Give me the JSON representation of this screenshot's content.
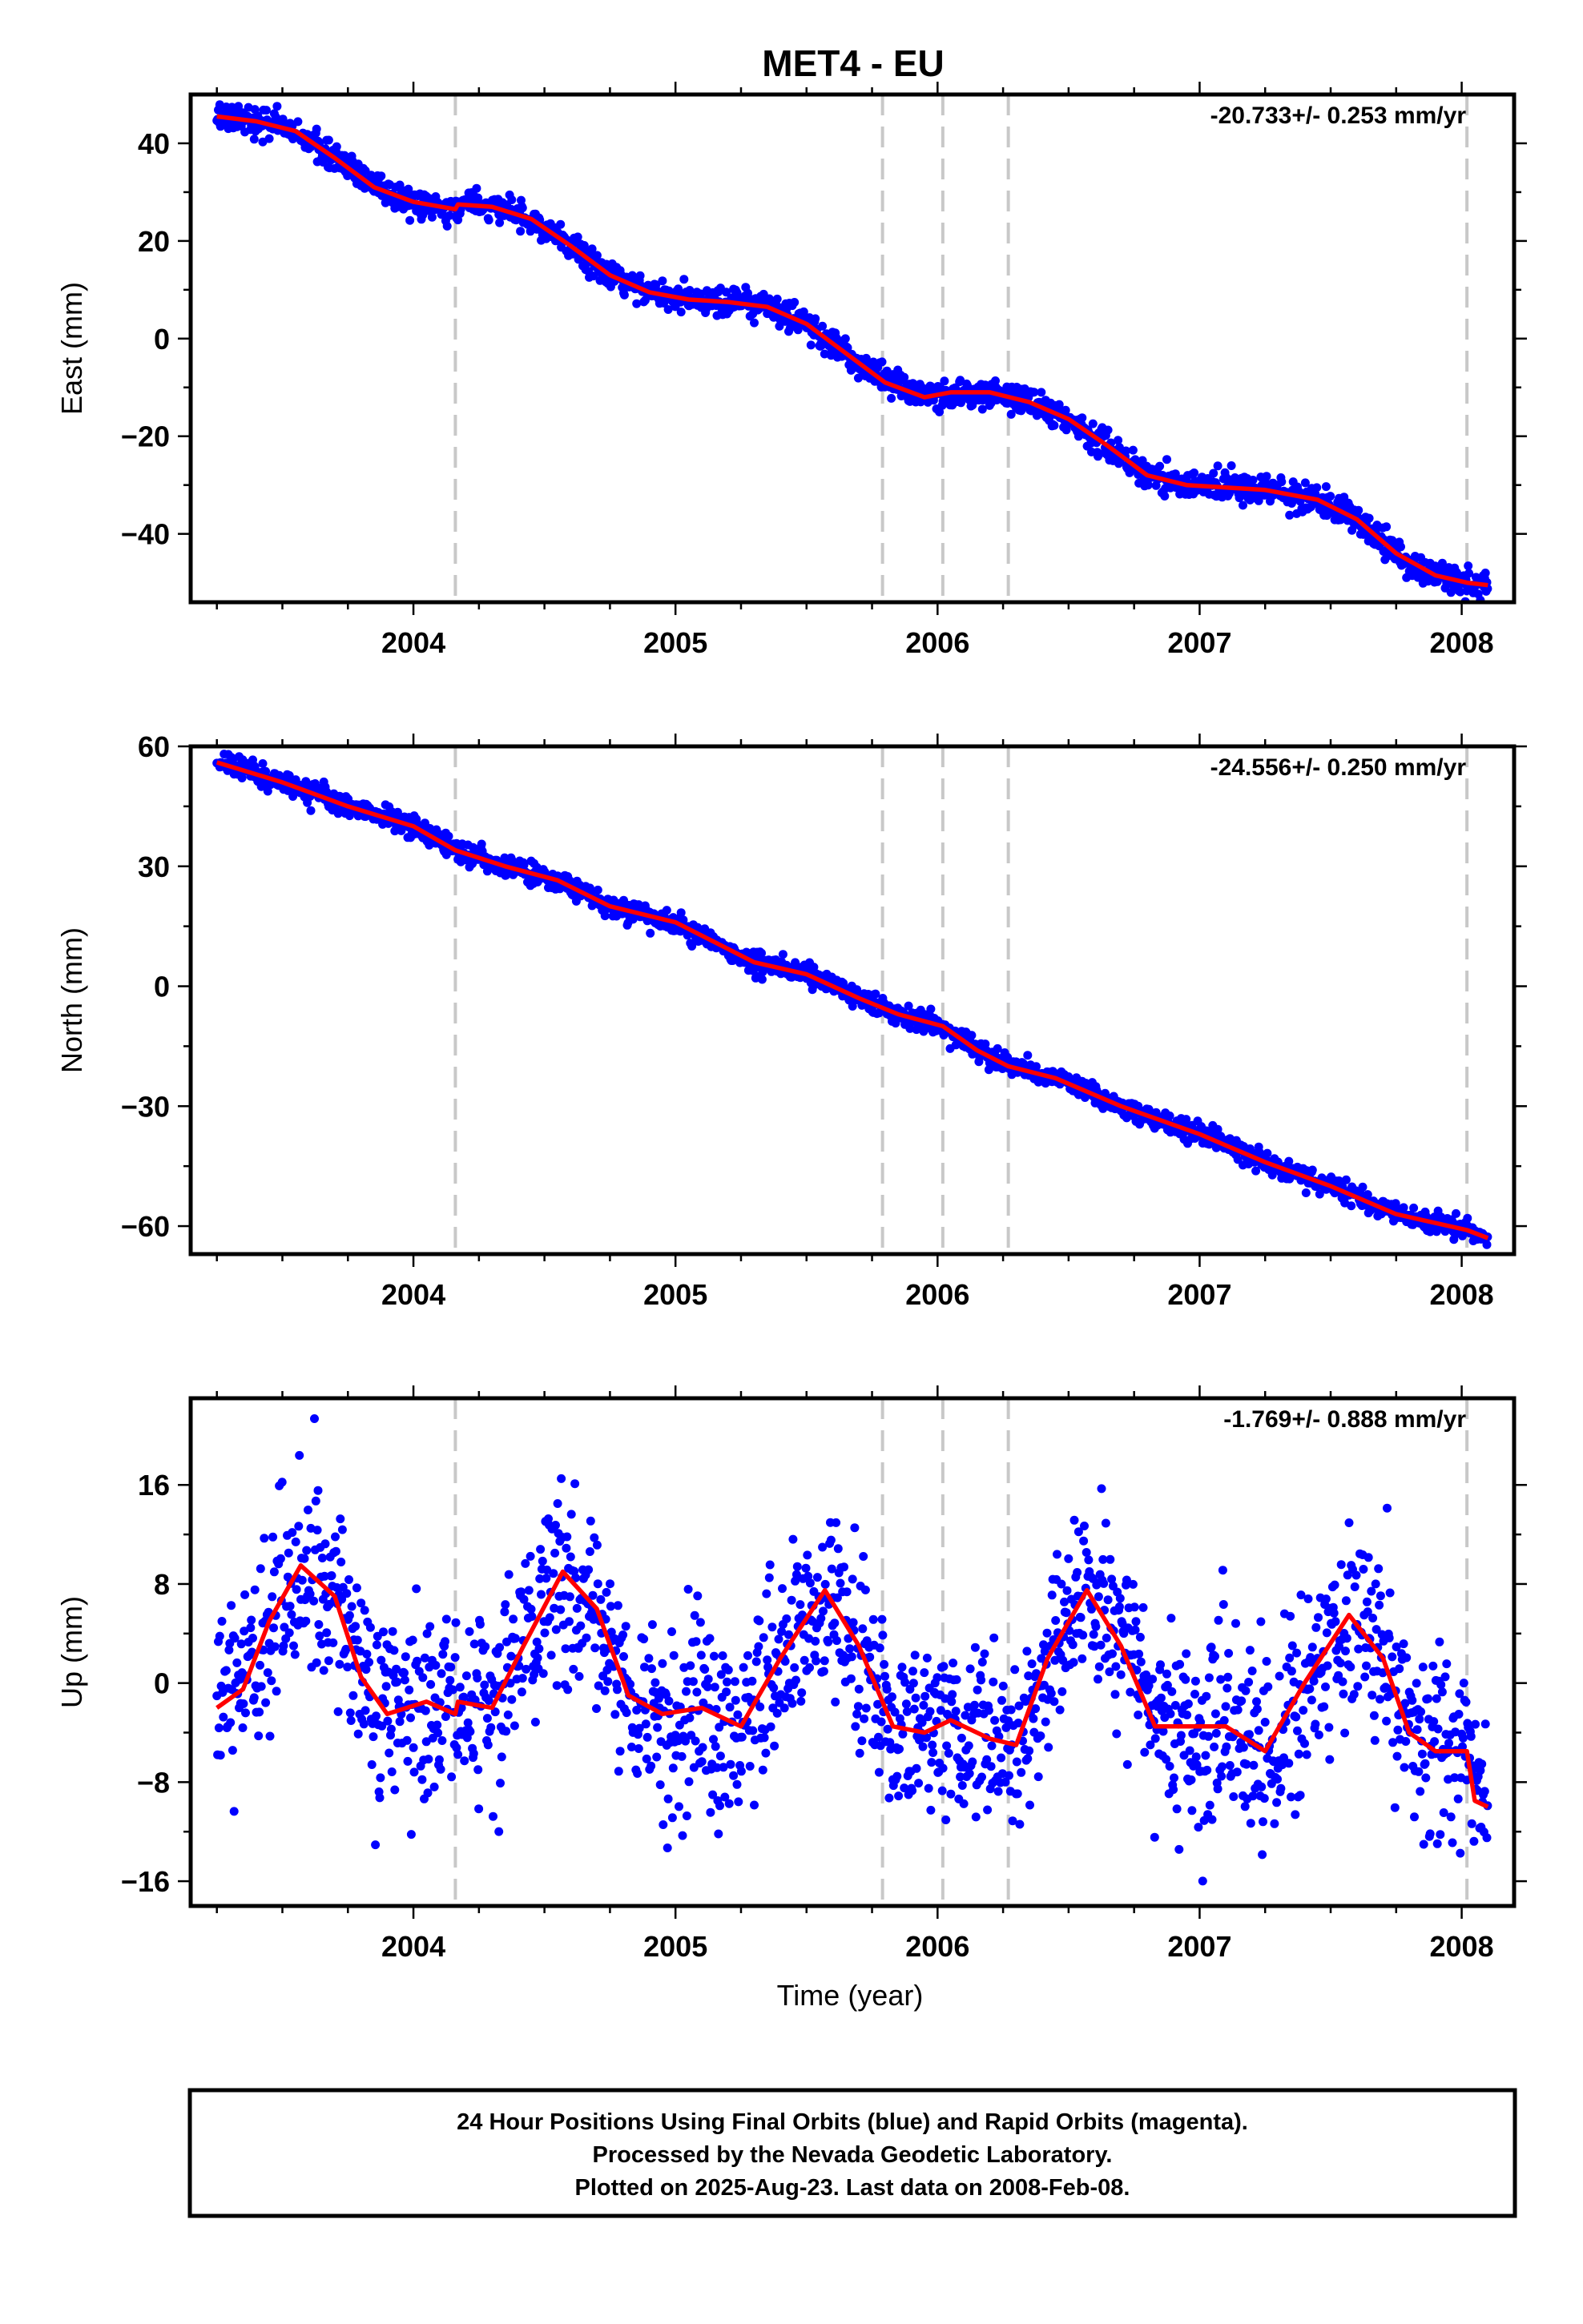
{
  "title": "MET4 - EU",
  "xlabel": "Time (year)",
  "footer": {
    "line1": "24 Hour Positions Using Final Orbits (blue) and Rapid Orbits (magenta).",
    "line2": "Processed by the Nevada Geodetic Laboratory.",
    "line3": "Plotted on 2025-Aug-23. Last data on 2008-Feb-08."
  },
  "colors": {
    "points": "#0000ff",
    "fit": "#ff0000",
    "breaks": "#c8c8c8"
  },
  "chart_data": [
    {
      "type": "scatter",
      "component": "east",
      "ylabel": "East (mm)",
      "rate_label": "-20.733+/- 0.253 mm/yr",
      "xlim": [
        2003.15,
        2008.2
      ],
      "ylim": [
        -54,
        50
      ],
      "yticks": [
        -40,
        -20,
        0,
        20,
        40
      ],
      "ytick_labels": [
        "−40",
        "−20",
        "0",
        "20",
        "40"
      ],
      "xticks": [
        2004,
        2005,
        2006,
        2007,
        2008
      ],
      "xtick_labels": [
        "2004",
        "2005",
        "2006",
        "2007",
        "2008"
      ],
      "breaks": [
        2004.16,
        2005.79,
        2006.02,
        2006.27,
        2008.02
      ],
      "noise_sd": 1.4,
      "fit": [
        [
          2003.25,
          45.5
        ],
        [
          2003.4,
          44.5
        ],
        [
          2003.55,
          42.5
        ],
        [
          2003.7,
          37.0
        ],
        [
          2003.85,
          31.0
        ],
        [
          2004.0,
          28.0
        ],
        [
          2004.16,
          26.5
        ],
        [
          2004.17,
          27.5
        ],
        [
          2004.3,
          27.0
        ],
        [
          2004.45,
          24.5
        ],
        [
          2004.6,
          19.0
        ],
        [
          2004.75,
          13.0
        ],
        [
          2004.9,
          9.5
        ],
        [
          2005.05,
          8.0
        ],
        [
          2005.2,
          7.5
        ],
        [
          2005.35,
          6.5
        ],
        [
          2005.5,
          3.0
        ],
        [
          2005.65,
          -3.0
        ],
        [
          2005.8,
          -9.0
        ],
        [
          2005.95,
          -12.0
        ],
        [
          2006.05,
          -11.0
        ],
        [
          2006.2,
          -11.0
        ],
        [
          2006.35,
          -13.0
        ],
        [
          2006.5,
          -16.5
        ],
        [
          2006.65,
          -22.0
        ],
        [
          2006.8,
          -28.0
        ],
        [
          2006.95,
          -30.0
        ],
        [
          2007.1,
          -30.5
        ],
        [
          2007.25,
          -31.0
        ],
        [
          2007.45,
          -33.0
        ],
        [
          2007.6,
          -37.0
        ],
        [
          2007.75,
          -44.0
        ],
        [
          2007.9,
          -48.5
        ],
        [
          2008.02,
          -50.0
        ],
        [
          2008.1,
          -50.5
        ]
      ]
    },
    {
      "type": "scatter",
      "component": "north",
      "ylabel": "North (mm)",
      "rate_label": "-24.556+/- 0.250 mm/yr",
      "xlim": [
        2003.15,
        2008.2
      ],
      "ylim": [
        -67,
        60
      ],
      "yticks": [
        -60,
        -30,
        0,
        30,
        60
      ],
      "ytick_labels": [
        "−60",
        "−30",
        "0",
        "30",
        "60"
      ],
      "xticks": [
        2004,
        2005,
        2006,
        2007,
        2008
      ],
      "xtick_labels": [
        "2004",
        "2005",
        "2006",
        "2007",
        "2008"
      ],
      "breaks": [
        2004.16,
        2005.79,
        2006.02,
        2006.27,
        2008.02
      ],
      "noise_sd": 1.3,
      "fit": [
        [
          2003.25,
          56.0
        ],
        [
          2003.5,
          51.0
        ],
        [
          2003.75,
          45.0
        ],
        [
          2004.0,
          40.0
        ],
        [
          2004.16,
          34.0
        ],
        [
          2004.35,
          30.0
        ],
        [
          2004.55,
          26.5
        ],
        [
          2004.75,
          20.0
        ],
        [
          2005.0,
          16.0
        ],
        [
          2005.15,
          11.0
        ],
        [
          2005.3,
          6.0
        ],
        [
          2005.5,
          3.0
        ],
        [
          2005.7,
          -3.0
        ],
        [
          2005.85,
          -7.0
        ],
        [
          2006.02,
          -10.0
        ],
        [
          2006.15,
          -16.0
        ],
        [
          2006.27,
          -20.0
        ],
        [
          2006.45,
          -23.0
        ],
        [
          2006.7,
          -30.0
        ],
        [
          2007.0,
          -37.0
        ],
        [
          2007.25,
          -44.0
        ],
        [
          2007.5,
          -50.0
        ],
        [
          2007.75,
          -57.0
        ],
        [
          2008.02,
          -61.0
        ],
        [
          2008.1,
          -63.0
        ]
      ]
    },
    {
      "type": "scatter",
      "component": "up",
      "ylabel": "Up (mm)",
      "rate_label": "-1.769+/- 0.888 mm/yr",
      "xlim": [
        2003.15,
        2008.2
      ],
      "ylim": [
        -18,
        23
      ],
      "yticks": [
        -16,
        -8,
        0,
        8,
        16
      ],
      "ytick_labels": [
        "−16",
        "−8",
        "0",
        "8",
        "16"
      ],
      "xticks": [
        2004,
        2005,
        2006,
        2007,
        2008
      ],
      "xtick_labels": [
        "2004",
        "2005",
        "2006",
        "2007",
        "2008"
      ],
      "breaks": [
        2004.16,
        2005.79,
        2006.02,
        2006.27,
        2008.02
      ],
      "noise_sd": 3.8,
      "fit": [
        [
          2003.25,
          -2.0
        ],
        [
          2003.35,
          -0.5
        ],
        [
          2003.45,
          5.0
        ],
        [
          2003.57,
          9.5
        ],
        [
          2003.7,
          7.0
        ],
        [
          2003.8,
          0.5
        ],
        [
          2003.9,
          -2.5
        ],
        [
          2004.05,
          -1.5
        ],
        [
          2004.16,
          -2.5
        ],
        [
          2004.17,
          -1.5
        ],
        [
          2004.3,
          -2.0
        ],
        [
          2004.42,
          3.0
        ],
        [
          2004.57,
          9.0
        ],
        [
          2004.7,
          6.0
        ],
        [
          2004.82,
          -1.0
        ],
        [
          2004.95,
          -2.5
        ],
        [
          2005.1,
          -2.0
        ],
        [
          2005.25,
          -3.5
        ],
        [
          2005.4,
          2.0
        ],
        [
          2005.57,
          7.5
        ],
        [
          2005.7,
          3.0
        ],
        [
          2005.83,
          -3.5
        ],
        [
          2005.95,
          -4.0
        ],
        [
          2006.05,
          -3.0
        ],
        [
          2006.2,
          -4.5
        ],
        [
          2006.3,
          -5.0
        ],
        [
          2006.42,
          2.0
        ],
        [
          2006.57,
          7.5
        ],
        [
          2006.7,
          3.0
        ],
        [
          2006.83,
          -3.5
        ],
        [
          2007.0,
          -3.5
        ],
        [
          2007.1,
          -3.5
        ],
        [
          2007.25,
          -5.5
        ],
        [
          2007.4,
          0.0
        ],
        [
          2007.57,
          5.5
        ],
        [
          2007.7,
          2.0
        ],
        [
          2007.8,
          -4.0
        ],
        [
          2007.9,
          -5.5
        ],
        [
          2008.02,
          -5.5
        ],
        [
          2008.05,
          -9.5
        ],
        [
          2008.1,
          -10.0
        ]
      ]
    }
  ]
}
